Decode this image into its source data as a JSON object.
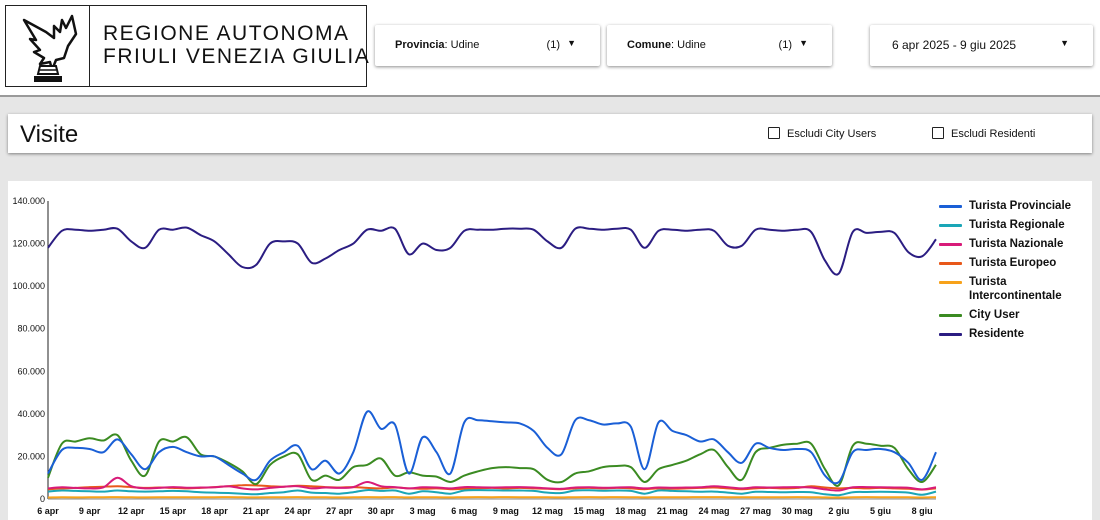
{
  "header": {
    "logo_alt": "eagle-emblem",
    "logo_line1": "REGIONE AUTONOMA",
    "logo_line2": "FRIULI VENEZIA GIULIA",
    "filters": [
      {
        "name": "Provincia",
        "value": "Udine",
        "count": "(1)"
      },
      {
        "name": "Comune",
        "value": "Udine",
        "count": "(1)"
      }
    ],
    "date_range": "6 apr 2025 - 9 giu 2025",
    "caret_icon": "caret-down-icon"
  },
  "title_bar": {
    "title": "Visite",
    "checkboxes": [
      {
        "label": "Escludi City Users",
        "checked": false
      },
      {
        "label": "Escludi Residenti",
        "checked": false
      }
    ]
  },
  "chart_data": {
    "type": "line",
    "title": "",
    "xlabel": "",
    "ylabel": "",
    "ylim": [
      0,
      140000
    ],
    "y_ticks": [
      "0",
      "20.000",
      "40.000",
      "60.000",
      "80.000",
      "100.000",
      "120.000",
      "140.000"
    ],
    "y_tick_values": [
      0,
      20000,
      40000,
      60000,
      80000,
      100000,
      120000,
      140000
    ],
    "x_tick_labels": [
      "6 apr",
      "9 apr",
      "12 apr",
      "15 apr",
      "18 apr",
      "21 apr",
      "24 apr",
      "27 apr",
      "30 apr",
      "3 mag",
      "6 mag",
      "9 mag",
      "12 mag",
      "15 mag",
      "18 mag",
      "21 mag",
      "24 mag",
      "27 mag",
      "30 mag",
      "2 giu",
      "5 giu",
      "8 giu"
    ],
    "grid": false,
    "legend_position": "right",
    "x_start": "2025-04-06",
    "x_end": "2025-06-09",
    "series": [
      {
        "name": "Turista Provinciale",
        "color": "#1a5fd6",
        "values": [
          12000,
          23000,
          24000,
          23500,
          22000,
          28000,
          21000,
          14000,
          22000,
          24500,
          22000,
          20000,
          20000,
          16000,
          12000,
          9000,
          18000,
          22000,
          25000,
          14000,
          18000,
          12000,
          22000,
          41000,
          33000,
          35000,
          12000,
          29000,
          22000,
          12000,
          36000,
          37000,
          36500,
          36000,
          35500,
          32000,
          24000,
          21000,
          37000,
          37000,
          35000,
          35500,
          34000,
          14000,
          36000,
          32000,
          30000,
          27000,
          28000,
          22000,
          17000,
          26000,
          24000,
          23000,
          23500,
          22000,
          11000,
          8000,
          22000,
          23000,
          23500,
          22000,
          17000,
          9000,
          22000
        ]
      },
      {
        "name": "Turista Regionale",
        "color": "#1aa6b7",
        "values": [
          3500,
          4000,
          3800,
          3600,
          3500,
          4000,
          3600,
          3500,
          3600,
          3800,
          3600,
          3200,
          3000,
          2800,
          2500,
          2200,
          2800,
          3200,
          4000,
          3000,
          2800,
          2500,
          3200,
          4200,
          3800,
          4000,
          2500,
          3600,
          3200,
          2500,
          4000,
          4200,
          4100,
          4000,
          4000,
          3800,
          3000,
          2800,
          4000,
          4100,
          3900,
          4000,
          3800,
          2500,
          4000,
          3800,
          3600,
          3400,
          3500,
          3000,
          2500,
          3400,
          3300,
          3200,
          3300,
          3200,
          2200,
          1800,
          3200,
          3300,
          3400,
          3300,
          3000,
          2000,
          3500
        ]
      },
      {
        "name": "Turista Nazionale",
        "color": "#d81b79",
        "values": [
          5000,
          5500,
          5200,
          5000,
          5500,
          10000,
          6000,
          5000,
          5200,
          5600,
          5300,
          5400,
          5500,
          6000,
          5000,
          4500,
          5200,
          5800,
          6000,
          5000,
          5400,
          5200,
          5600,
          8000,
          6000,
          5600,
          5000,
          5500,
          5400,
          5000,
          5600,
          5500,
          5400,
          5500,
          5600,
          5400,
          5000,
          4800,
          5400,
          5500,
          5300,
          5400,
          5500,
          5000,
          5400,
          5300,
          5400,
          5500,
          6000,
          5500,
          5000,
          5500,
          5400,
          5500,
          5600,
          5400,
          4500,
          4000,
          5500,
          5600,
          5500,
          5400,
          5300,
          4500,
          5500
        ]
      },
      {
        "name": "Turista Europeo",
        "color": "#e8581a",
        "values": [
          4500,
          5000,
          5200,
          5600,
          5800,
          6000,
          5600,
          5200,
          5400,
          5200,
          5000,
          5200,
          5600,
          6000,
          6500,
          6400,
          6000,
          5800,
          6200,
          6000,
          5600,
          5400,
          5600,
          5200,
          5000,
          5400,
          5000,
          4800,
          5000,
          4600,
          4800,
          5000,
          5200,
          5000,
          5200,
          5000,
          4800,
          4600,
          5000,
          5200,
          5000,
          5200,
          5000,
          4600,
          5000,
          4800,
          5000,
          5200,
          5400,
          5000,
          4600,
          5000,
          5200,
          5000,
          5200,
          6000,
          5400,
          5000,
          5200,
          5000,
          5200,
          5000,
          4800,
          4400,
          5000
        ]
      },
      {
        "name": "Turista Intercontinentale",
        "color": "#f7a21a",
        "values": [
          700,
          800,
          750,
          800,
          850,
          900,
          800,
          750,
          800,
          850,
          800,
          800,
          850,
          900,
          800,
          750,
          800,
          850,
          900,
          800,
          800,
          750,
          800,
          900,
          850,
          900,
          750,
          850,
          800,
          750,
          850,
          900,
          850,
          900,
          850,
          850,
          800,
          750,
          850,
          900,
          850,
          900,
          850,
          750,
          850,
          800,
          850,
          900,
          900,
          850,
          800,
          850,
          850,
          850,
          900,
          850,
          750,
          700,
          850,
          900,
          850,
          850,
          800,
          700,
          850
        ]
      },
      {
        "name": "City User",
        "color": "#3b8b22",
        "values": [
          10000,
          26000,
          27000,
          28500,
          27500,
          30000,
          18000,
          11000,
          27000,
          27000,
          29000,
          21000,
          20000,
          17000,
          13000,
          7000,
          16000,
          20000,
          21000,
          9000,
          11000,
          9000,
          15000,
          16000,
          19000,
          11000,
          12500,
          11000,
          10500,
          8000,
          11000,
          13000,
          14500,
          15000,
          14500,
          14000,
          9000,
          8000,
          12000,
          13000,
          15000,
          15500,
          15000,
          8000,
          14000,
          16000,
          18000,
          21000,
          23000,
          15000,
          9000,
          22000,
          24000,
          25500,
          26000,
          26000,
          14000,
          6500,
          25000,
          26000,
          25000,
          24000,
          14000,
          8000,
          16000
        ]
      },
      {
        "name": "Residente",
        "color": "#2b1d82",
        "values": [
          118000,
          126000,
          126500,
          126000,
          126500,
          127000,
          121000,
          118000,
          126500,
          126500,
          127500,
          124000,
          121000,
          115000,
          109000,
          110000,
          120000,
          121000,
          120000,
          111000,
          113000,
          117000,
          120000,
          126500,
          126000,
          127000,
          115000,
          120000,
          117000,
          118000,
          126000,
          126500,
          126500,
          127000,
          127000,
          126500,
          121000,
          118000,
          127000,
          127000,
          126500,
          127000,
          126500,
          118000,
          126000,
          126500,
          126000,
          126500,
          126000,
          119000,
          119000,
          126500,
          126500,
          126000,
          126500,
          125500,
          112000,
          106000,
          125500,
          125000,
          125500,
          125000,
          116000,
          114000,
          122000
        ]
      }
    ]
  }
}
